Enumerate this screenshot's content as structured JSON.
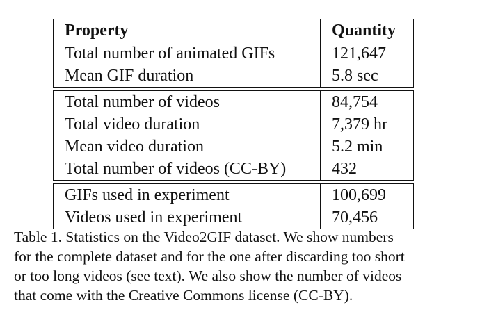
{
  "table": {
    "header": {
      "property": "Property",
      "quantity": "Quantity"
    },
    "groups": [
      [
        {
          "property": "Total number of animated GIFs",
          "quantity": "121,647"
        },
        {
          "property": "Mean GIF duration",
          "quantity": "5.8 sec"
        }
      ],
      [
        {
          "property": "Total number of videos",
          "quantity": "84,754"
        },
        {
          "property": "Total video duration",
          "quantity": "7,379 hr"
        },
        {
          "property": "Mean video duration",
          "quantity": "5.2 min"
        },
        {
          "property": "Total number of videos (CC-BY)",
          "quantity": "432"
        }
      ],
      [
        {
          "property": "GIFs used in experiment",
          "quantity": "100,699"
        },
        {
          "property": "Videos used in experiment",
          "quantity": "70,456"
        }
      ]
    ]
  },
  "caption": {
    "lines": [
      "Table 1. Statistics on the Video2GIF dataset.  We show numbers",
      "for the complete dataset and for the one after discarding too short",
      "or too long videos (see text). We also show the number of videos",
      "that come with the Creative Commons license (CC-BY)."
    ]
  }
}
